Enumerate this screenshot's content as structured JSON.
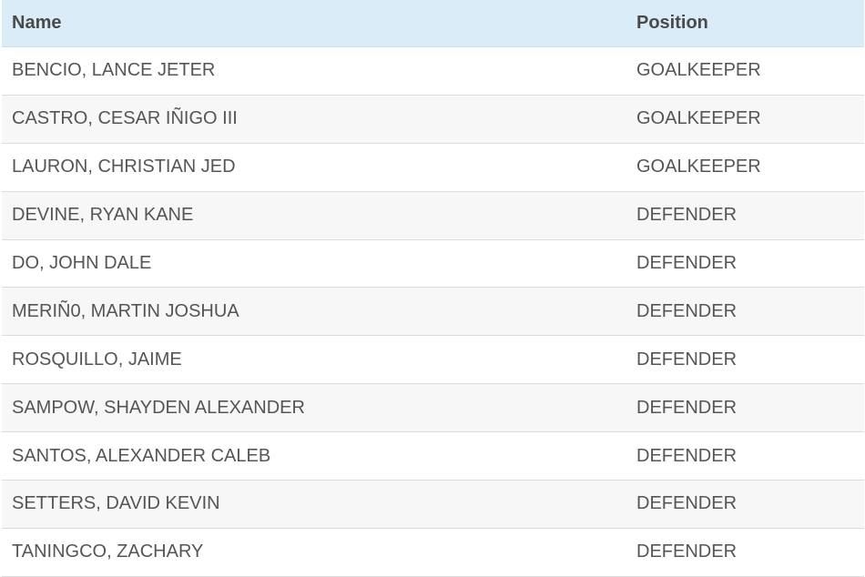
{
  "table": {
    "header": {
      "name": "Name",
      "position": "Position"
    },
    "rows": [
      {
        "name": "BENCIO, LANCE JETER",
        "position": "GOALKEEPER"
      },
      {
        "name": "CASTRO, CESAR IÑIGO III",
        "position": "GOALKEEPER"
      },
      {
        "name": "LAURON, CHRISTIAN JED",
        "position": "GOALKEEPER"
      },
      {
        "name": "DEVINE, RYAN KANE",
        "position": "DEFENDER"
      },
      {
        "name": "DO, JOHN DALE",
        "position": "DEFENDER"
      },
      {
        "name": "MERIÑ0, MARTIN JOSHUA",
        "position": "DEFENDER"
      },
      {
        "name": "ROSQUILLO, JAIME",
        "position": "DEFENDER"
      },
      {
        "name": "SAMPOW, SHAYDEN ALEXANDER",
        "position": "DEFENDER"
      },
      {
        "name": "SANTOS, ALEXANDER CALEB",
        "position": "DEFENDER"
      },
      {
        "name": "SETTERS, DAVID KEVIN",
        "position": "DEFENDER"
      },
      {
        "name": "TANINGCO, ZACHARY",
        "position": "DEFENDER"
      }
    ]
  },
  "colors": {
    "header_bg": "#d9ecf7",
    "row_alt_bg": "#f7f7f7",
    "text": "#555555"
  }
}
